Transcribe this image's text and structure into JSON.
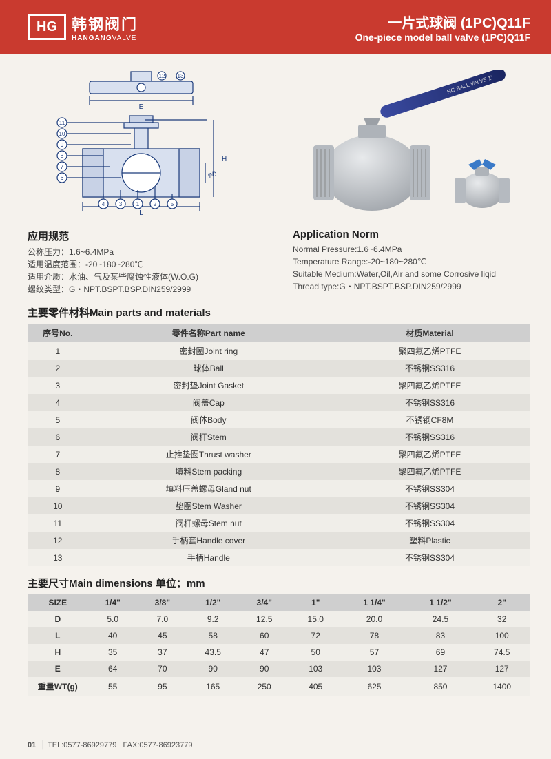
{
  "header": {
    "logo_mark": "HG",
    "logo_cn": "韩钢阀门",
    "logo_en_bold": "HANGANG",
    "logo_en_thin": "VALVE",
    "title_cn": "一片式球阀 (1PC)Q11F",
    "title_en": "One-piece model ball valve (1PC)Q11F",
    "bg_color": "#c93a2f"
  },
  "diagram": {
    "callouts": [
      "1",
      "2",
      "3",
      "4",
      "5",
      "6",
      "7",
      "8",
      "9",
      "10",
      "11",
      "12",
      "13"
    ],
    "dim_labels": [
      "L",
      "H",
      "E",
      "φD"
    ],
    "line_color": "#1a3a7a",
    "fill_color": "#d8e0ef"
  },
  "photo": {
    "handle_color": "#2a3a8a",
    "body_color": "#bfc3c8",
    "small_handle_color": "#3a7ac8"
  },
  "norms_cn": {
    "title": "应用规范",
    "lines": [
      "公称压力：1.6~6.4MPa",
      "适用温度范围：-20~180~280℃",
      "适用介质：水油、气及某些腐蚀性液体(W.O.G)",
      "螺纹类型：G・NPT.BSPT.BSP.DIN259/2999"
    ]
  },
  "norms_en": {
    "title": "Application Norm",
    "lines": [
      "Normal Pressure:1.6~6.4MPa",
      "Temperature Range:-20~180~280℃",
      "Suitable Medium:Water,Oil,Air and some Corrosive liqid",
      "Thread type:G・NPT.BSPT.BSP.DIN259/2999"
    ]
  },
  "parts": {
    "title": "主要零件材料Main parts and materials",
    "headers": [
      "序号No.",
      "零件名称Part name",
      "材质Material"
    ],
    "rows": [
      [
        "1",
        "密封圈Joint ring",
        "聚四氟乙烯PTFE"
      ],
      [
        "2",
        "球体Ball",
        "不锈钢SS316"
      ],
      [
        "3",
        "密封垫Joint Gasket",
        "聚四氟乙烯PTFE"
      ],
      [
        "4",
        "阀盖Cap",
        "不锈钢SS316"
      ],
      [
        "5",
        "阀体Body",
        "不锈钢CF8M"
      ],
      [
        "6",
        "阀杆Stem",
        "不锈钢SS316"
      ],
      [
        "7",
        "止推垫圈Thrust washer",
        "聚四氟乙烯PTFE"
      ],
      [
        "8",
        "填料Stem packing",
        "聚四氟乙烯PTFE"
      ],
      [
        "9",
        "填料压盖螺母Gland nut",
        "不锈钢SS304"
      ],
      [
        "10",
        "垫圈Stem Washer",
        "不锈钢SS304"
      ],
      [
        "11",
        "阀杆螺母Stem nut",
        "不锈钢SS304"
      ],
      [
        "12",
        "手柄套Handle cover",
        "塑料Plastic"
      ],
      [
        "13",
        "手柄Handle",
        "不锈钢SS304"
      ]
    ]
  },
  "dims": {
    "title": "主要尺寸Main dimensions   单位：mm",
    "col_headers": [
      "SIZE",
      "1/4\"",
      "3/8\"",
      "1/2\"",
      "3/4\"",
      "1\"",
      "1 1/4\"",
      "1 1/2\"",
      "2\""
    ],
    "rows": [
      [
        "D",
        "5.0",
        "7.0",
        "9.2",
        "12.5",
        "15.0",
        "20.0",
        "24.5",
        "32"
      ],
      [
        "L",
        "40",
        "45",
        "58",
        "60",
        "72",
        "78",
        "83",
        "100"
      ],
      [
        "H",
        "35",
        "37",
        "43.5",
        "47",
        "50",
        "57",
        "69",
        "74.5"
      ],
      [
        "E",
        "64",
        "70",
        "90",
        "90",
        "103",
        "103",
        "127",
        "127"
      ],
      [
        "重量WT(g)",
        "55",
        "95",
        "165",
        "250",
        "405",
        "625",
        "850",
        "1400"
      ]
    ]
  },
  "footer": {
    "page": "01",
    "tel_label": "TEL:",
    "tel": "0577-86929779",
    "fax_label": "FAX:",
    "fax": "0577-86923779"
  }
}
